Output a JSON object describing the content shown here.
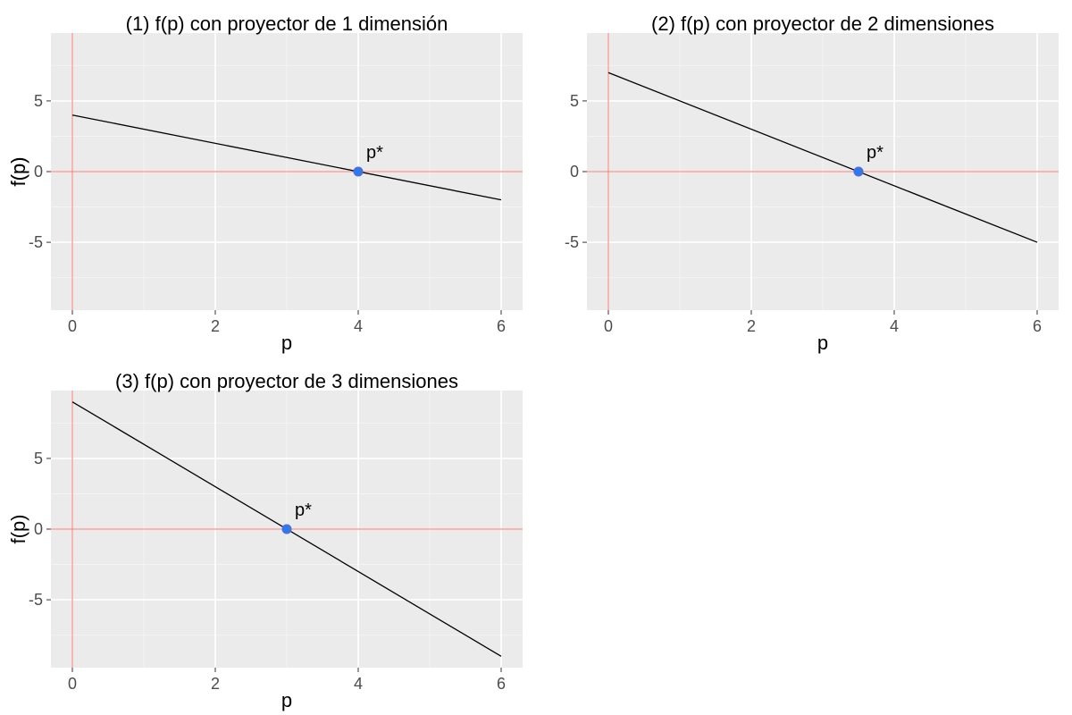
{
  "chart_data": [
    {
      "type": "line",
      "title": "(1) f(p) con proyector de 1 dimensión",
      "xlabel": "p",
      "ylabel": "f(p)",
      "xlim": [
        -0.3,
        6.3
      ],
      "ylim": [
        -9.8,
        9.8
      ],
      "x_ticks": [
        0,
        2,
        4,
        6
      ],
      "x_tick_labels": [
        "0",
        "2",
        "4",
        "6"
      ],
      "y_ticks": [
        -5,
        0,
        5
      ],
      "y_tick_labels": [
        "-5",
        "0",
        "5"
      ],
      "grid": true,
      "reference_lines": {
        "x": 0,
        "y": 0,
        "color": "#f8766d"
      },
      "series": [
        {
          "x": [
            0,
            6
          ],
          "y": [
            4,
            -2
          ],
          "color": "#000000"
        }
      ],
      "point": {
        "x": 4,
        "y": 0,
        "label": "p*",
        "color": "#3a75e6"
      }
    },
    {
      "type": "line",
      "title": "(2) f(p) con proyector de 2 dimensiones",
      "xlabel": "p",
      "ylabel": "f(p)",
      "xlim": [
        -0.3,
        6.3
      ],
      "ylim": [
        -9.8,
        9.8
      ],
      "x_ticks": [
        0,
        2,
        4,
        6
      ],
      "x_tick_labels": [
        "0",
        "2",
        "4",
        "6"
      ],
      "y_ticks": [
        -5,
        0,
        5
      ],
      "y_tick_labels": [
        "-5",
        "0",
        "5"
      ],
      "grid": true,
      "reference_lines": {
        "x": 0,
        "y": 0,
        "color": "#f8766d"
      },
      "series": [
        {
          "x": [
            0,
            6
          ],
          "y": [
            7,
            -5
          ],
          "color": "#000000"
        }
      ],
      "point": {
        "x": 3.5,
        "y": 0,
        "label": "p*",
        "color": "#3a75e6"
      }
    },
    {
      "type": "line",
      "title": "(3) f(p) con proyector de 3 dimensiones",
      "xlabel": "p",
      "ylabel": "f(p)",
      "xlim": [
        -0.3,
        6.3
      ],
      "ylim": [
        -9.8,
        9.8
      ],
      "x_ticks": [
        0,
        2,
        4,
        6
      ],
      "x_tick_labels": [
        "0",
        "2",
        "4",
        "6"
      ],
      "y_ticks": [
        -5,
        0,
        5
      ],
      "y_tick_labels": [
        "-5",
        "0",
        "5"
      ],
      "grid": true,
      "reference_lines": {
        "x": 0,
        "y": 0,
        "color": "#f8766d"
      },
      "series": [
        {
          "x": [
            0,
            6
          ],
          "y": [
            9,
            -9
          ],
          "color": "#000000"
        }
      ],
      "point": {
        "x": 3,
        "y": 0,
        "label": "p*",
        "color": "#3a75e6"
      }
    }
  ]
}
